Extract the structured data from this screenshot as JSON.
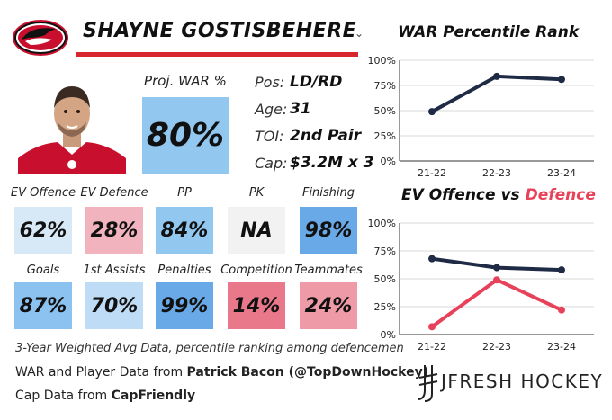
{
  "player": {
    "name": "SHAYNE GOSTISBEHERE",
    "caret": "⌄"
  },
  "proj_war": {
    "label": "Proj. WAR %",
    "value": "80%",
    "color": "#92c7f0"
  },
  "info": [
    {
      "key": "Pos:",
      "value": "LD/RD"
    },
    {
      "key": "Age:",
      "value": "31"
    },
    {
      "key": "TOI:",
      "value": "2nd Pair"
    },
    {
      "key": "Cap:",
      "value": "$3.2M x 3"
    }
  ],
  "row1": [
    {
      "label": "EV Offence",
      "value": "62%",
      "color": "#d7e8f7"
    },
    {
      "label": "EV Defence",
      "value": "28%",
      "color": "#f1b3bd"
    },
    {
      "label": "PP",
      "value": "84%",
      "color": "#92c7f0"
    },
    {
      "label": "PK",
      "value": "NA",
      "color": "#f2f2f2"
    },
    {
      "label": "Finishing",
      "value": "98%",
      "color": "#6aa9e8"
    }
  ],
  "row2": [
    {
      "label": "Goals",
      "value": "87%",
      "color": "#8cc2f0"
    },
    {
      "label": "1st Assists",
      "value": "70%",
      "color": "#bedcf5"
    },
    {
      "label": "Penalties",
      "value": "99%",
      "color": "#6aa9e8"
    },
    {
      "label": "Competition",
      "value": "14%",
      "color": "#e8788a"
    },
    {
      "label": "Teammates",
      "value": "24%",
      "color": "#ef9aa7"
    }
  ],
  "footer": {
    "note": "3-Year Weighted Avg Data, percentile ranking among defencemen",
    "war_prefix": "WAR and Player Data from ",
    "war_source": "Patrick Bacon (@TopDownHockey)",
    "cap_prefix": "Cap Data from ",
    "cap_source": "CapFriendly"
  },
  "brand": "JFRESH HOCKEY",
  "chart_data": [
    {
      "type": "line",
      "title": "WAR Percentile Rank",
      "categories": [
        "21-22",
        "22-23",
        "23-24"
      ],
      "ylim": [
        0,
        100
      ],
      "yticks": [
        "0%",
        "25%",
        "50%",
        "75%",
        "100%"
      ],
      "series": [
        {
          "values": [
            49,
            84,
            81
          ],
          "color": "#1f2b45"
        }
      ]
    },
    {
      "type": "line",
      "title_prefix": "EV Offence vs ",
      "title_highlight": "Defence",
      "title_highlight_color": "#e8425a",
      "categories": [
        "21-22",
        "22-23",
        "23-24"
      ],
      "ylim": [
        0,
        100
      ],
      "yticks": [
        "0%",
        "25%",
        "50%",
        "75%",
        "100%"
      ],
      "series": [
        {
          "values": [
            68,
            60,
            58
          ],
          "color": "#1f2b45"
        },
        {
          "values": [
            7,
            49,
            22
          ],
          "color": "#e8425a"
        }
      ]
    }
  ]
}
